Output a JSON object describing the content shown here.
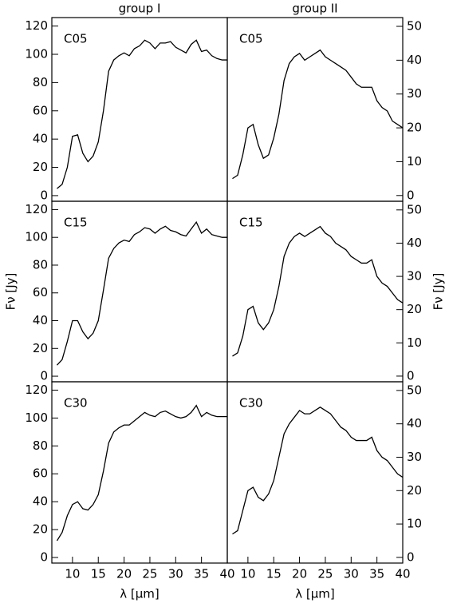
{
  "chart_data": [
    {
      "type": "line",
      "title": "group I",
      "label": "C05",
      "x": [
        7,
        8,
        9,
        10,
        11,
        12,
        13,
        14,
        15,
        16,
        17,
        18,
        19,
        20,
        21,
        22,
        23,
        24,
        25,
        26,
        27,
        28,
        29,
        30,
        31,
        32,
        33,
        34,
        35,
        36,
        37,
        38,
        39,
        40
      ],
      "values": [
        5,
        8,
        20,
        42,
        43,
        30,
        24,
        28,
        38,
        60,
        88,
        96,
        99,
        101,
        99,
        104,
        106,
        110,
        108,
        104,
        108,
        108,
        109,
        105,
        103,
        101,
        107,
        110,
        102,
        103,
        99,
        97,
        96,
        96
      ],
      "xlim": [
        6,
        40
      ],
      "ylim": [
        -4,
        126
      ],
      "yticks": [
        0,
        20,
        40,
        60,
        80,
        100,
        120
      ]
    },
    {
      "type": "line",
      "title": "group II",
      "label": "C05",
      "x": [
        7,
        8,
        9,
        10,
        11,
        12,
        13,
        14,
        15,
        16,
        17,
        18,
        19,
        20,
        21,
        22,
        23,
        24,
        25,
        26,
        27,
        28,
        29,
        30,
        31,
        32,
        33,
        34,
        35,
        36,
        37,
        38,
        39,
        40
      ],
      "values": [
        5,
        6,
        12,
        20,
        21,
        15,
        11,
        12,
        17,
        24,
        34,
        39,
        41,
        42,
        40,
        41,
        42,
        43,
        41,
        40,
        39,
        38,
        37,
        35,
        33,
        32,
        32,
        32,
        28,
        26,
        25,
        22,
        21,
        20
      ],
      "xlim": [
        6,
        40
      ],
      "ylim": [
        -1.7,
        52.6
      ],
      "yticks": [
        0,
        10,
        20,
        30,
        40,
        50
      ]
    },
    {
      "type": "line",
      "label": "C15",
      "y_label": "Fν [Jy]",
      "x": [
        7,
        8,
        9,
        10,
        11,
        12,
        13,
        14,
        15,
        16,
        17,
        18,
        19,
        20,
        21,
        22,
        23,
        24,
        25,
        26,
        27,
        28,
        29,
        30,
        31,
        32,
        33,
        34,
        35,
        36,
        37,
        38,
        39,
        40
      ],
      "values": [
        8,
        12,
        25,
        40,
        40,
        32,
        27,
        31,
        40,
        62,
        85,
        92,
        96,
        98,
        97,
        102,
        104,
        107,
        106,
        103,
        106,
        108,
        105,
        104,
        102,
        101,
        106,
        111,
        103,
        106,
        102,
        101,
        100,
        100
      ],
      "xlim": [
        6,
        40
      ],
      "ylim": [
        -4,
        126
      ],
      "yticks": [
        0,
        20,
        40,
        60,
        80,
        100,
        120
      ]
    },
    {
      "type": "line",
      "label": "C15",
      "y_label": "Fν [Jy]",
      "x": [
        7,
        8,
        9,
        10,
        11,
        12,
        13,
        14,
        15,
        16,
        17,
        18,
        19,
        20,
        21,
        22,
        23,
        24,
        25,
        26,
        27,
        28,
        29,
        30,
        31,
        32,
        33,
        34,
        35,
        36,
        37,
        38,
        39,
        40
      ],
      "values": [
        6,
        7,
        12,
        20,
        21,
        16,
        14,
        16,
        20,
        27,
        36,
        40,
        42,
        43,
        42,
        43,
        44,
        45,
        43,
        42,
        40,
        39,
        38,
        36,
        35,
        34,
        34,
        35,
        30,
        28,
        27,
        25,
        23,
        22
      ],
      "xlim": [
        6,
        40
      ],
      "ylim": [
        -1.7,
        52.6
      ],
      "yticks": [
        0,
        10,
        20,
        30,
        40,
        50
      ]
    },
    {
      "type": "line",
      "label": "C30",
      "x_label": "λ [μm]",
      "x": [
        7,
        8,
        9,
        10,
        11,
        12,
        13,
        14,
        15,
        16,
        17,
        18,
        19,
        20,
        21,
        22,
        23,
        24,
        25,
        26,
        27,
        28,
        29,
        30,
        31,
        32,
        33,
        34,
        35,
        36,
        37,
        38,
        39,
        40
      ],
      "values": [
        12,
        18,
        30,
        38,
        40,
        35,
        34,
        38,
        45,
        62,
        82,
        90,
        93,
        95,
        95,
        98,
        101,
        104,
        102,
        101,
        104,
        105,
        103,
        101,
        100,
        101,
        104,
        109,
        101,
        104,
        102,
        101,
        101,
        101
      ],
      "xlim": [
        6,
        40
      ],
      "xticks": [
        10,
        15,
        20,
        25,
        30,
        35,
        40
      ],
      "ylim": [
        -4,
        126
      ],
      "yticks": [
        0,
        20,
        40,
        60,
        80,
        100,
        120
      ]
    },
    {
      "type": "line",
      "label": "C30",
      "x_label": "λ [μm]",
      "x": [
        7,
        8,
        9,
        10,
        11,
        12,
        13,
        14,
        15,
        16,
        17,
        18,
        19,
        20,
        21,
        22,
        23,
        24,
        25,
        26,
        27,
        28,
        29,
        30,
        31,
        32,
        33,
        34,
        35,
        36,
        37,
        38,
        39,
        40
      ],
      "values": [
        7,
        8,
        14,
        20,
        21,
        18,
        17,
        19,
        23,
        30,
        37,
        40,
        42,
        44,
        43,
        43,
        44,
        45,
        44,
        43,
        41,
        39,
        38,
        36,
        35,
        35,
        35,
        36,
        32,
        30,
        29,
        27,
        25,
        24
      ],
      "xlim": [
        6,
        40
      ],
      "xticks": [
        10,
        15,
        20,
        25,
        30,
        35,
        40
      ],
      "ylim": [
        -1.7,
        52.6
      ],
      "yticks": [
        0,
        10,
        20,
        30,
        40,
        50
      ]
    }
  ]
}
